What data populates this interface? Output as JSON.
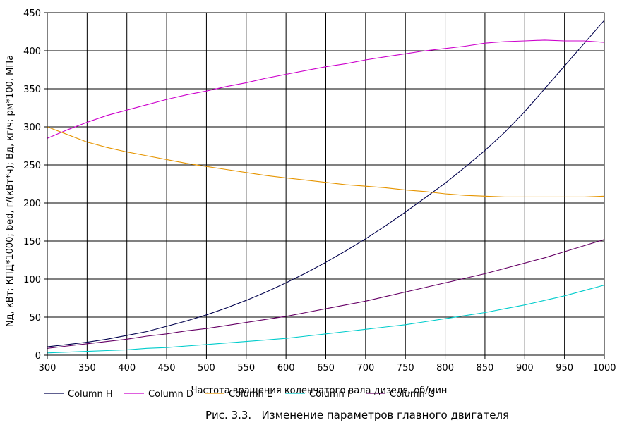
{
  "chart_data": {
    "type": "line",
    "title": "",
    "caption": "Рис. 3.3.   Изменение параметров главного двигателя",
    "xlabel": "Частота вращения коленчатого вала дизеля, об/мин",
    "ylabel": "Nд, кВт;  КПД*1000;  bеd, г/(кВт*ч);  Вд, кг/ч;  рм*100, МПа",
    "xlim": [
      300,
      1000
    ],
    "ylim": [
      0,
      450
    ],
    "x_ticks": [
      300,
      350,
      400,
      450,
      500,
      550,
      600,
      650,
      700,
      750,
      800,
      850,
      900,
      950,
      1000
    ],
    "y_ticks": [
      0,
      50,
      100,
      150,
      200,
      250,
      300,
      350,
      400,
      450
    ],
    "grid": true,
    "legend_placement": "bottom",
    "x": [
      300,
      325,
      350,
      375,
      400,
      425,
      450,
      475,
      500,
      525,
      550,
      575,
      600,
      625,
      650,
      675,
      700,
      725,
      750,
      775,
      800,
      825,
      850,
      875,
      900,
      925,
      950,
      975,
      1000
    ],
    "series": [
      {
        "name": "Column H",
        "color": "#00004d",
        "values": [
          11,
          14,
          17,
          21,
          26,
          31,
          38,
          45,
          53,
          62,
          72,
          83,
          95,
          108,
          122,
          137,
          153,
          170,
          188,
          207,
          226,
          247,
          269,
          293,
          320,
          350,
          380,
          410,
          440
        ]
      },
      {
        "name": "Column D",
        "color": "#cc00cc",
        "values": [
          285,
          296,
          306,
          315,
          322,
          329,
          336,
          342,
          347,
          353,
          358,
          364,
          369,
          374,
          379,
          383,
          388,
          392,
          396,
          400,
          403,
          406,
          410,
          412,
          413,
          414,
          413,
          413,
          411
        ]
      },
      {
        "name": "Column E",
        "color": "#e69500",
        "values": [
          300,
          290,
          280,
          273,
          267,
          262,
          257,
          252,
          248,
          244,
          240,
          236,
          233,
          230,
          227,
          224,
          222,
          220,
          217,
          215,
          212,
          210,
          209,
          208,
          208,
          208,
          208,
          208,
          209
        ]
      },
      {
        "name": "Column F",
        "color": "#00cccc",
        "values": [
          3,
          4,
          5,
          6,
          7,
          9,
          10,
          12,
          14,
          16,
          18,
          20,
          22,
          25,
          28,
          31,
          34,
          37,
          40,
          44,
          48,
          52,
          56,
          61,
          66,
          72,
          78,
          85,
          92
        ]
      },
      {
        "name": "Column G",
        "color": "#660066",
        "values": [
          9,
          12,
          15,
          18,
          21,
          25,
          28,
          32,
          35,
          39,
          43,
          47,
          51,
          56,
          61,
          66,
          71,
          77,
          83,
          89,
          95,
          101,
          107,
          114,
          121,
          128,
          136,
          144,
          152
        ]
      }
    ]
  }
}
